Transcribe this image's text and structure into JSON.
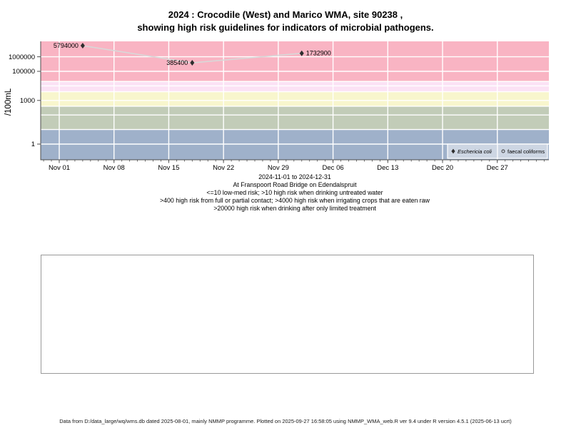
{
  "title": {
    "line1": "2024 : Crocodile (West) and Marico WMA, site 90238 ,",
    "line2": "showing high risk guidelines for indicators of microbial pathogens."
  },
  "chart_data": {
    "type": "scatter",
    "title": "2024 : Crocodile (West) and Marico WMA, site 90238 , showing high risk guidelines for indicators of microbial pathogens.",
    "xlabel": "2024-11-01 to 2024-12-31",
    "ylabel": "/100mL",
    "y_axis": {
      "scale": "log10",
      "ticks": [
        {
          "value": 1,
          "label": "1"
        },
        {
          "value": 1000,
          "label": "1000"
        },
        {
          "value": 100000,
          "label": "100000"
        },
        {
          "value": 1000000,
          "label": "1000000"
        }
      ],
      "gridline_values": [
        1,
        10,
        100,
        1000,
        10000,
        100000,
        1000000
      ]
    },
    "x_axis": {
      "range": [
        "2024-11-01",
        "2024-12-31"
      ],
      "ticks": [
        {
          "day": 0,
          "label": "Nov 01"
        },
        {
          "day": 7,
          "label": "Nov 08"
        },
        {
          "day": 14,
          "label": "Nov 15"
        },
        {
          "day": 21,
          "label": "Nov 22"
        },
        {
          "day": 28,
          "label": "Nov 29"
        },
        {
          "day": 35,
          "label": "Dec 06"
        },
        {
          "day": 42,
          "label": "Dec 13"
        },
        {
          "day": 49,
          "label": "Dec 20"
        },
        {
          "day": 56,
          "label": "Dec 27"
        }
      ],
      "minor_tick_day_range": [
        -2,
        62
      ]
    },
    "risk_bands": [
      {
        "name": "high-risk-drinking-limited-treatment",
        "min_value": 20000,
        "color": "#f9b4c3"
      },
      {
        "name": "high-risk-irrigating-raw-crops",
        "min_value": 4000,
        "color": "#fbe2f5"
      },
      {
        "name": "high-risk-full-partial-contact",
        "min_value": 400,
        "color": "#f8f6cd"
      },
      {
        "name": "high-risk-drinking-untreated",
        "min_value": 10,
        "color": "#c2ccb8"
      },
      {
        "name": "low-med-risk",
        "min_value": null,
        "color": "#9fb1ca"
      }
    ],
    "series": [
      {
        "name": "Eschericia coli",
        "marker": "filled-diamond",
        "color": "#2e2e2e",
        "line_color": "#d8d8d8",
        "points": [
          {
            "date": "2024-11-04",
            "day": 3,
            "value": 5794000,
            "label": "5794000",
            "label_side": "left"
          },
          {
            "date": "2024-11-18",
            "day": 17,
            "value": 385400,
            "label": "385400",
            "label_side": "left"
          },
          {
            "date": "2024-12-02",
            "day": 31,
            "value": 1732900,
            "label": "1732900",
            "label_side": "right"
          }
        ]
      },
      {
        "name": "faecal coliforms",
        "marker": "open-circle",
        "color": "#2e2e2e",
        "points": []
      }
    ],
    "legend": {
      "position": "bottom-right",
      "bg": "#cdd6e3",
      "entries": [
        {
          "label": "Eschericia coli",
          "marker": "filled-diamond",
          "italic": true
        },
        {
          "label": "faecal coliforms",
          "marker": "open-circle",
          "italic": false
        }
      ]
    }
  },
  "captions": [
    "2024-11-01 to 2024-12-31",
    "At Franspoort Road Bridge on Edendalspruit",
    "<=10 low-med risk; >10 high risk when drinking untreated water",
    ">400 high risk from full or partial contact; >4000 high risk when irrigating crops that are eaten raw",
    ">20000 high risk when drinking after only limited treatment"
  ],
  "footer": {
    "text": "Data from D:/data_large/wq/wms.db dated 2025-08-01, mainly NMMP programme. Plotted on 2025-09-27 16:58:05 using NMMP_WMA_web.R ver 9.4 under R version 4.5.1 (2025-06-13 ucrt)"
  }
}
